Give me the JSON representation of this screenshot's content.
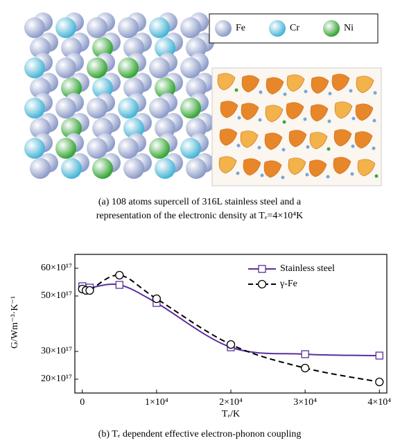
{
  "panel_a": {
    "legend": [
      "Fe",
      "Cr",
      "Ni"
    ],
    "caption": [
      "(a) 108 atoms supercell of 316L stainless steel and a",
      "representation of the electronic density at Tₑ=4×10⁴K"
    ]
  },
  "chart_data": {
    "type": "line",
    "caption": "(b) Tₑ dependent effective electron-phonon coupling",
    "x_label": "Tₑ/K",
    "y_label": "G/Wm⁻³·K⁻¹",
    "xlim": [
      -1000,
      41000
    ],
    "xticks": [
      0,
      {
        "value": 10000,
        "label": "1×10⁴"
      },
      {
        "value": 20000,
        "label": "2×10⁴"
      },
      {
        "value": 30000,
        "label": "3×10⁴"
      },
      {
        "value": 40000,
        "label": "4×10⁴"
      }
    ],
    "ylim": [
      1.5e+18,
      6.5e+18
    ],
    "yticks": [
      {
        "value": 2e+18,
        "label": "20×10¹⁷"
      },
      {
        "value": 3e+18,
        "label": "30×10¹⁷"
      },
      {
        "value": 5e+18,
        "label": "50×10¹⁷"
      },
      {
        "value": 6e+18,
        "label": "60×10¹⁷"
      }
    ],
    "legend": "upper right",
    "series": [
      {
        "name": "Stainless steel",
        "color": "#5a2d9c",
        "marker": "square",
        "dash": false,
        "x": [
          0,
          1000,
          5000,
          10000,
          20000,
          30000,
          40000
        ],
        "values": [
          5.35e+18,
          5.3e+18,
          5.4e+18,
          4.75e+18,
          3.15e+18,
          2.9e+18,
          2.85e+18
        ]
      },
      {
        "name": "γ-Fe",
        "color": "#000000",
        "marker": "circle",
        "dash": true,
        "x": [
          0,
          500,
          1000,
          5000,
          10000,
          20000,
          30000,
          40000
        ],
        "values": [
          5.25e+18,
          5.2e+18,
          5.2e+18,
          5.75e+18,
          4.9e+18,
          3.25e+18,
          2.4e+18,
          1.9e+18
        ]
      }
    ]
  }
}
